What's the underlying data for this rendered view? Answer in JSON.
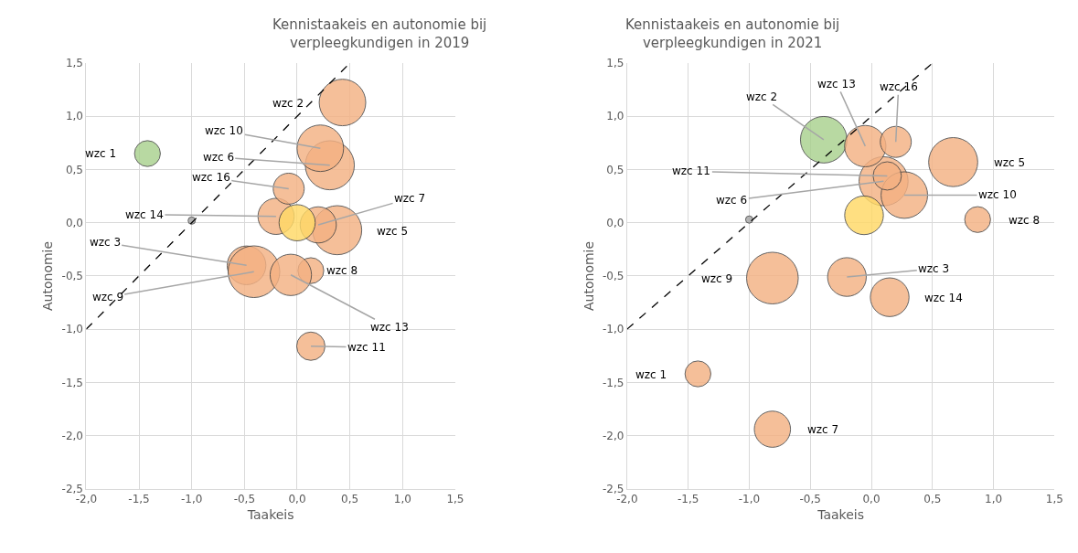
{
  "chart_data": [
    {
      "type": "bubble",
      "title": "Kennistaakeis en autonomie bij verpleegkundigen in 2019",
      "xlabel": "Taakeis",
      "ylabel": "Autonomie",
      "grid": true,
      "xlim": [
        -2.0,
        1.5
      ],
      "xticks": [
        {
          "value": -2.0,
          "label": "-2,0"
        },
        {
          "value": -1.5,
          "label": "-1,5"
        },
        {
          "value": -1.0,
          "label": "-1,0"
        },
        {
          "value": -0.5,
          "label": "-0,5"
        },
        {
          "value": 0.0,
          "label": "0,0"
        },
        {
          "value": 0.5,
          "label": "0,5"
        },
        {
          "value": 1.0,
          "label": "1,0"
        },
        {
          "value": 1.5,
          "label": "1,5"
        }
      ],
      "ylim": [
        -2.5,
        1.5
      ],
      "yticks": [
        {
          "value": -2.5,
          "label": "-2,5"
        },
        {
          "value": -2.0,
          "label": "-2,0"
        },
        {
          "value": -1.5,
          "label": "-1,5"
        },
        {
          "value": -1.0,
          "label": "-1,0"
        },
        {
          "value": -0.5,
          "label": "-0,5"
        },
        {
          "value": 0.0,
          "label": "0,0"
        },
        {
          "value": 0.5,
          "label": "0,5"
        },
        {
          "value": 1.0,
          "label": "1,0"
        },
        {
          "value": 1.5,
          "label": "1,5"
        }
      ],
      "series": [
        {
          "name": "wzc 1",
          "color": "#a9d18e",
          "x": [
            -1.42
          ],
          "values": [
            0.65
          ],
          "sizes": [
            0.25
          ]
        },
        {
          "name": "wzc 2",
          "color": "#f4b183",
          "x": [
            0.43
          ],
          "values": [
            1.13
          ],
          "sizes": [
            0.81
          ]
        },
        {
          "name": "wzc 3",
          "color": "#f4b183",
          "x": [
            -0.48
          ],
          "values": [
            -0.4
          ],
          "sizes": [
            0.56
          ]
        },
        {
          "name": "wzc 5",
          "color": "#f4b183",
          "x": [
            0.38
          ],
          "values": [
            -0.07
          ],
          "sizes": [
            0.9
          ]
        },
        {
          "name": "wzc 6",
          "color": "#f4b183",
          "x": [
            0.31
          ],
          "values": [
            0.54
          ],
          "sizes": [
            0.9
          ]
        },
        {
          "name": "wzc 7",
          "color": "#f4b183",
          "x": [
            0.2
          ],
          "values": [
            -0.02
          ],
          "sizes": [
            0.49
          ]
        },
        {
          "name": "wzc 8",
          "color": "#f4b183",
          "x": [
            0.13
          ],
          "values": [
            -0.45
          ],
          "sizes": [
            0.25
          ]
        },
        {
          "name": "wzc 9",
          "color": "#f4b183",
          "x": [
            -0.41
          ],
          "values": [
            -0.46
          ],
          "sizes": [
            1
          ]
        },
        {
          "name": "wzc 10",
          "color": "#f4b183",
          "x": [
            0.22
          ],
          "values": [
            0.7
          ],
          "sizes": [
            0.81
          ]
        },
        {
          "name": "wzc 11",
          "color": "#f4b183",
          "x": [
            0.13
          ],
          "values": [
            -1.16
          ],
          "sizes": [
            0.3
          ]
        },
        {
          "name": "wzc 13",
          "color": "#f4b183",
          "x": [
            -0.06
          ],
          "values": [
            -0.49
          ],
          "sizes": [
            0.64
          ]
        },
        {
          "name": "wzc 14",
          "color": "#f4b183",
          "x": [
            -0.2
          ],
          "values": [
            0.06
          ],
          "sizes": [
            0.49
          ]
        },
        {
          "name": "wzc 16",
          "color": "#f4b183",
          "x": [
            -0.08
          ],
          "values": [
            0.32
          ],
          "sizes": [
            0.36
          ]
        },
        {
          "color": "#ffd966",
          "x": [
            0.0
          ],
          "values": [
            0.0
          ],
          "sizes": [
            0.49
          ]
        },
        {
          "color": "#a6a6a6",
          "x": [
            -1.0
          ],
          "values": [
            0.02
          ],
          "sizes": [
            0.02
          ]
        },
        {
          "type": "line",
          "color": "#000000",
          "line_style": "dashed",
          "x": [
            -2.0,
            0.5
          ],
          "values": [
            -1.0,
            1.5
          ]
        }
      ]
    },
    {
      "type": "bubble",
      "title": "Kennistaakeis en autonomie bij verpleegkundigen in 2021",
      "xlabel": "Taakeis",
      "ylabel": "Autonomie",
      "grid": true,
      "xlim": [
        -2.0,
        1.5
      ],
      "xticks": [
        {
          "value": -2.0,
          "label": "-2,0"
        },
        {
          "value": -1.5,
          "label": "-1,5"
        },
        {
          "value": -1.0,
          "label": "-1,0"
        },
        {
          "value": -0.5,
          "label": "-0,5"
        },
        {
          "value": 0.0,
          "label": "0,0"
        },
        {
          "value": 0.5,
          "label": "0,5"
        },
        {
          "value": 1.0,
          "label": "1,0"
        },
        {
          "value": 1.5,
          "label": "1,5"
        }
      ],
      "ylim": [
        -2.5,
        1.5
      ],
      "yticks": [
        {
          "value": -2.5,
          "label": "-2,5"
        },
        {
          "value": -2.0,
          "label": "-2,0"
        },
        {
          "value": -1.5,
          "label": "-1,5"
        },
        {
          "value": -1.0,
          "label": "-1,0"
        },
        {
          "value": -0.5,
          "label": "-0,5"
        },
        {
          "value": 0.0,
          "label": "0,0"
        },
        {
          "value": 0.5,
          "label": "0,5"
        },
        {
          "value": 1.0,
          "label": "1,0"
        },
        {
          "value": 1.5,
          "label": "1,5"
        }
      ],
      "series": [
        {
          "name": "wzc 1",
          "color": "#f4b183",
          "x": [
            -1.42
          ],
          "values": [
            -1.42
          ],
          "sizes": [
            0.25
          ]
        },
        {
          "name": "wzc 2",
          "color": "#a9d18e",
          "x": [
            -0.39
          ],
          "values": [
            0.78
          ],
          "sizes": [
            0.81
          ]
        },
        {
          "name": "wzc 3",
          "color": "#f4b183",
          "x": [
            -0.2
          ],
          "values": [
            -0.51
          ],
          "sizes": [
            0.56
          ]
        },
        {
          "name": "wzc 5",
          "color": "#f4b183",
          "x": [
            0.67
          ],
          "values": [
            0.57
          ],
          "sizes": [
            0.9
          ]
        },
        {
          "name": "wzc 6",
          "color": "#f4b183",
          "x": [
            0.1
          ],
          "values": [
            0.39
          ],
          "sizes": [
            0.9
          ]
        },
        {
          "name": "wzc 7",
          "color": "#f4b183",
          "x": [
            -0.81
          ],
          "values": [
            -1.94
          ],
          "sizes": [
            0.49
          ]
        },
        {
          "name": "wzc 8",
          "color": "#f4b183",
          "x": [
            0.87
          ],
          "values": [
            0.03
          ],
          "sizes": [
            0.25
          ]
        },
        {
          "name": "wzc 9",
          "color": "#f4b183",
          "x": [
            -0.81
          ],
          "values": [
            -0.52
          ],
          "sizes": [
            1
          ]
        },
        {
          "name": "wzc 10",
          "color": "#f4b183",
          "x": [
            0.27
          ],
          "values": [
            0.26
          ],
          "sizes": [
            0.81
          ]
        },
        {
          "name": "wzc 11",
          "color": "#f4b183",
          "x": [
            0.13
          ],
          "values": [
            0.44
          ],
          "sizes": [
            0.3
          ]
        },
        {
          "name": "wzc 13",
          "color": "#f4b183",
          "x": [
            -0.05
          ],
          "values": [
            0.72
          ],
          "sizes": [
            0.64
          ]
        },
        {
          "name": "wzc 14",
          "color": "#f4b183",
          "x": [
            0.15
          ],
          "values": [
            -0.7
          ],
          "sizes": [
            0.56
          ]
        },
        {
          "name": "wzc 16",
          "color": "#f4b183",
          "x": [
            0.2
          ],
          "values": [
            0.76
          ],
          "sizes": [
            0.36
          ]
        },
        {
          "color": "#ffd966",
          "x": [
            -0.06
          ],
          "values": [
            0.07
          ],
          "sizes": [
            0.56
          ]
        },
        {
          "color": "#a6a6a6",
          "x": [
            -1.0
          ],
          "values": [
            0.03
          ],
          "sizes": [
            0.02
          ]
        },
        {
          "type": "line",
          "color": "#000000",
          "line_style": "dashed",
          "x": [
            -2.0,
            0.5
          ],
          "values": [
            -1.0,
            1.5
          ]
        }
      ]
    }
  ]
}
